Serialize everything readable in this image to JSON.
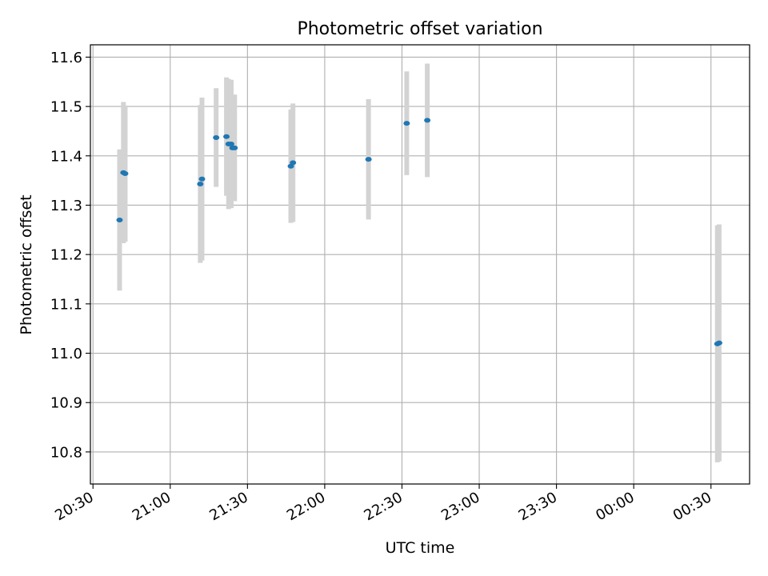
{
  "chart_data": {
    "type": "scatter",
    "title": "Photometric offset variation",
    "xlabel": "UTC time",
    "ylabel": "Photometric offset",
    "xlim": [
      "2000-01-01T20:29:00",
      "2000-01-02T00:45:00"
    ],
    "ylim": [
      10.735,
      11.625
    ],
    "grid": true,
    "x_ticks": [
      "20:30",
      "21:00",
      "21:30",
      "22:00",
      "22:30",
      "23:00",
      "23:30",
      "00:00",
      "00:30"
    ],
    "x_tick_values": [
      "2000-01-01T20:30:00",
      "2000-01-01T21:00:00",
      "2000-01-01T21:30:00",
      "2000-01-01T22:00:00",
      "2000-01-01T22:30:00",
      "2000-01-01T23:00:00",
      "2000-01-01T23:30:00",
      "2000-01-02T00:00:00",
      "2000-01-02T00:30:00"
    ],
    "y_ticks": [
      "10.8",
      "10.9",
      "11.0",
      "11.1",
      "11.2",
      "11.3",
      "11.4",
      "11.5",
      "11.6"
    ],
    "y_tick_values": [
      10.8,
      10.9,
      11.0,
      11.1,
      11.2,
      11.3,
      11.4,
      11.5,
      11.6
    ],
    "colors": {
      "points": "#1f77b4",
      "errorbars": "#d3d3d3",
      "grid": "#b0b0b0"
    },
    "points": [
      {
        "time": "2000-01-01T20:40:20",
        "value": 11.27,
        "err": 0.143
      },
      {
        "time": "2000-01-01T20:41:50",
        "value": 11.366,
        "err": 0.143
      },
      {
        "time": "2000-01-01T20:42:30",
        "value": 11.364,
        "err": 0.138
      },
      {
        "time": "2000-01-01T21:11:40",
        "value": 11.343,
        "err": 0.16
      },
      {
        "time": "2000-01-01T21:12:20",
        "value": 11.353,
        "err": 0.165
      },
      {
        "time": "2000-01-01T21:17:50",
        "value": 11.437,
        "err": 0.1
      },
      {
        "time": "2000-01-01T21:21:50",
        "value": 11.439,
        "err": 0.12
      },
      {
        "time": "2000-01-01T21:22:40",
        "value": 11.424,
        "err": 0.132
      },
      {
        "time": "2000-01-01T21:23:40",
        "value": 11.424,
        "err": 0.13
      },
      {
        "time": "2000-01-01T21:24:10",
        "value": 11.416,
        "err": 0.108
      },
      {
        "time": "2000-01-01T21:25:00",
        "value": 11.416,
        "err": 0.108
      },
      {
        "time": "2000-01-01T21:46:50",
        "value": 11.379,
        "err": 0.115
      },
      {
        "time": "2000-01-01T21:47:40",
        "value": 11.386,
        "err": 0.12
      },
      {
        "time": "2000-01-01T22:17:00",
        "value": 11.393,
        "err": 0.122
      },
      {
        "time": "2000-01-01T22:31:50",
        "value": 11.466,
        "err": 0.105
      },
      {
        "time": "2000-01-01T22:39:50",
        "value": 11.472,
        "err": 0.115
      },
      {
        "time": "2000-01-02T00:32:30",
        "value": 11.019,
        "err": 0.24
      },
      {
        "time": "2000-01-02T00:33:10",
        "value": 11.021,
        "err": 0.24
      }
    ]
  }
}
